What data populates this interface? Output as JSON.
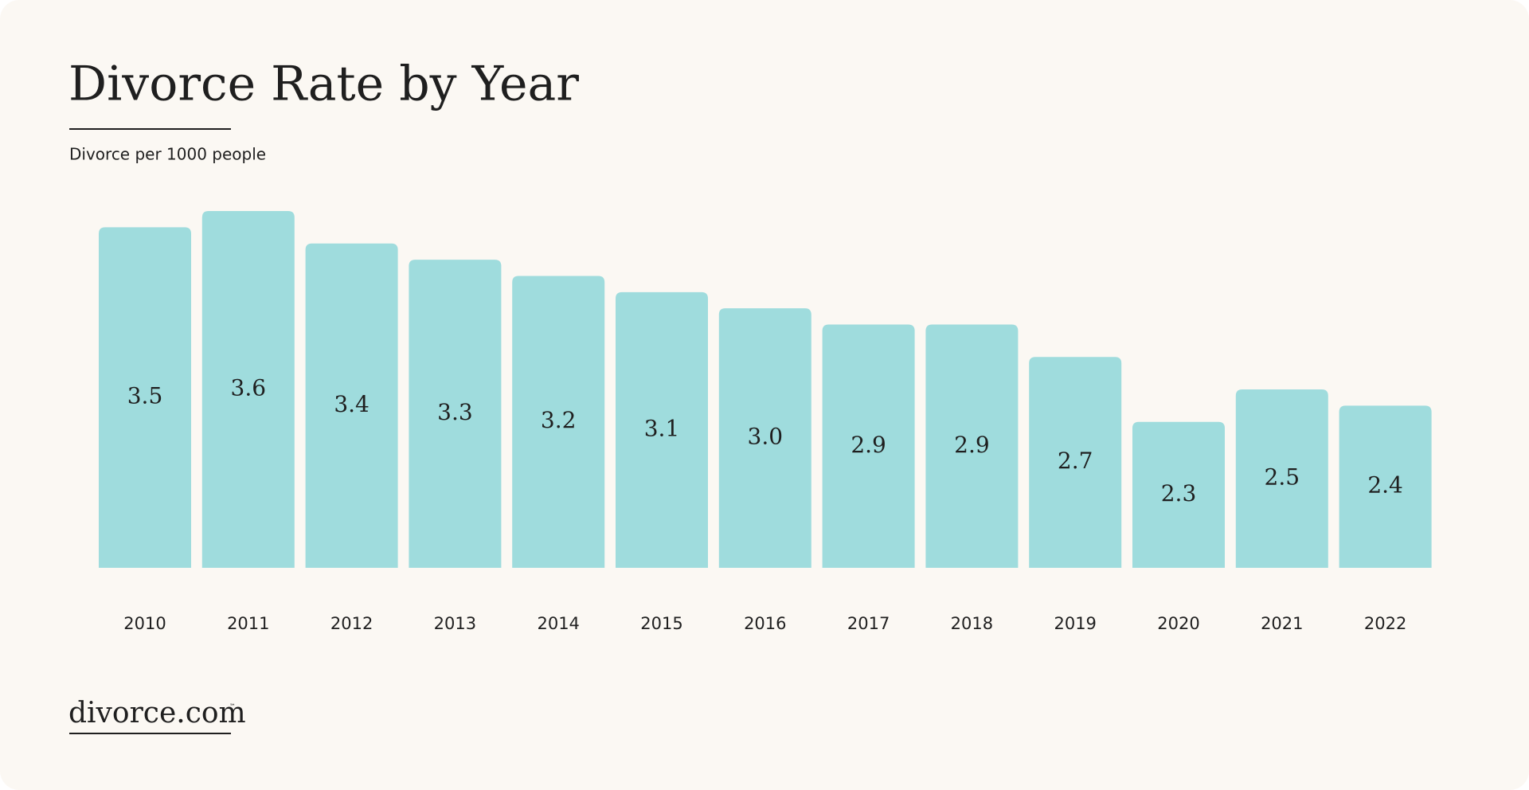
{
  "chart_data": {
    "type": "bar",
    "title": "Divorce Rate by Year",
    "subtitle": "Divorce per 1000 people",
    "categories": [
      "2010",
      "2011",
      "2012",
      "2013",
      "2014",
      "2015",
      "2016",
      "2017",
      "2018",
      "2019",
      "2020",
      "2021",
      "2022"
    ],
    "values": [
      3.5,
      3.6,
      3.4,
      3.3,
      3.2,
      3.1,
      3.0,
      2.9,
      2.9,
      2.7,
      2.3,
      2.5,
      2.4
    ],
    "value_labels": [
      "3.5",
      "3.6",
      "3.4",
      "3.3",
      "3.2",
      "3.1",
      "3.0",
      "2.9",
      "2.9",
      "2.7",
      "2.3",
      "2.5",
      "2.4"
    ],
    "color": "#9fdcdd",
    "ylim": [
      1.4,
      3.6
    ]
  },
  "logo": {
    "text": "divorce.com",
    "mark": "™"
  }
}
